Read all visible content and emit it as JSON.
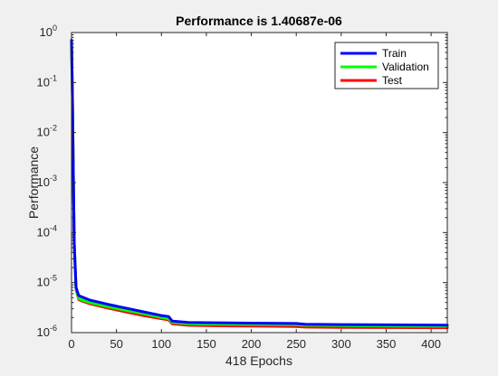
{
  "chart_data": {
    "type": "line",
    "title": "Performance is 1.40687e-06",
    "xlabel": "418 Epochs",
    "ylabel": "Performance",
    "xlim": [
      0,
      418
    ],
    "ylim": [
      1e-06,
      1
    ],
    "yscale": "log",
    "xticks": [
      "0",
      "50",
      "100",
      "150",
      "200",
      "250",
      "300",
      "350",
      "400"
    ],
    "yticks": [
      {
        "base": "10",
        "exp": "0"
      },
      {
        "base": "10",
        "exp": "-1"
      },
      {
        "base": "10",
        "exp": "-2"
      },
      {
        "base": "10",
        "exp": "-3"
      },
      {
        "base": "10",
        "exp": "-4"
      },
      {
        "base": "10",
        "exp": "-5"
      },
      {
        "base": "10",
        "exp": "-6"
      }
    ],
    "legend": "top-right",
    "grid": false,
    "series": [
      {
        "name": "Train",
        "color": "#0000ff",
        "x": [
          0,
          1,
          2,
          3,
          5,
          8,
          10,
          20,
          40,
          60,
          80,
          100,
          108,
          112,
          130,
          150,
          200,
          250,
          260,
          300,
          350,
          418
        ],
        "y": [
          0.7,
          0.05,
          0.0015,
          6e-05,
          8e-06,
          5.5e-06,
          5.3e-06,
          4.5e-06,
          3.7e-06,
          3.1e-06,
          2.6e-06,
          2.2e-06,
          2.1e-06,
          1.7e-06,
          1.6e-06,
          1.58e-06,
          1.55e-06,
          1.52e-06,
          1.47e-06,
          1.45e-06,
          1.43e-06,
          1.41e-06
        ]
      },
      {
        "name": "Validation",
        "color": "#00ff00",
        "x": [
          0,
          1,
          2,
          3,
          5,
          8,
          10,
          20,
          40,
          60,
          80,
          100,
          108,
          112,
          130,
          150,
          200,
          250,
          260,
          300,
          350,
          418
        ],
        "y": [
          0.7,
          0.05,
          0.0015,
          6e-05,
          7.5e-06,
          4.8e-06,
          4.6e-06,
          4e-06,
          3.3e-06,
          2.8e-06,
          2.4e-06,
          2e-06,
          1.9e-06,
          1.6e-06,
          1.5e-06,
          1.48e-06,
          1.46e-06,
          1.44e-06,
          1.4e-06,
          1.38e-06,
          1.36e-06,
          1.34e-06
        ]
      },
      {
        "name": "Test",
        "color": "#ff0000",
        "x": [
          0,
          1,
          2,
          3,
          5,
          8,
          10,
          20,
          40,
          60,
          80,
          100,
          108,
          112,
          130,
          150,
          200,
          250,
          260,
          300,
          350,
          418
        ],
        "y": [
          0.7,
          0.05,
          0.0015,
          6e-05,
          7.2e-06,
          4.6e-06,
          4.4e-06,
          3.8e-06,
          3.1e-06,
          2.6e-06,
          2.2e-06,
          1.9e-06,
          1.8e-06,
          1.5e-06,
          1.4e-06,
          1.38e-06,
          1.35e-06,
          1.32e-06,
          1.29e-06,
          1.27e-06,
          1.26e-06,
          1.25e-06
        ]
      }
    ]
  }
}
